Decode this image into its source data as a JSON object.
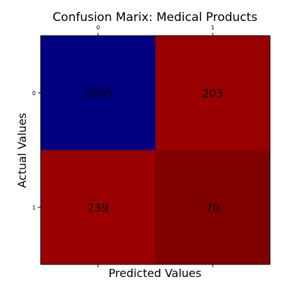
{
  "chart_data": {
    "type": "heatmap",
    "title": "Confusion Marix: Medical Products",
    "xlabel": "Predicted Values",
    "ylabel": "Actual Values",
    "x_tick_labels": [
      "0",
      "1"
    ],
    "y_tick_labels": [
      "0",
      "1"
    ],
    "x_ticks_position": "top",
    "matrix": [
      [
        5995,
        203
      ],
      [
        239,
        70
      ]
    ],
    "cell_colors": [
      [
        "#000080",
        "#9a0000"
      ],
      [
        "#9a0000",
        "#800000"
      ]
    ],
    "colormap": "seismic",
    "grid": false,
    "legend": "none"
  }
}
